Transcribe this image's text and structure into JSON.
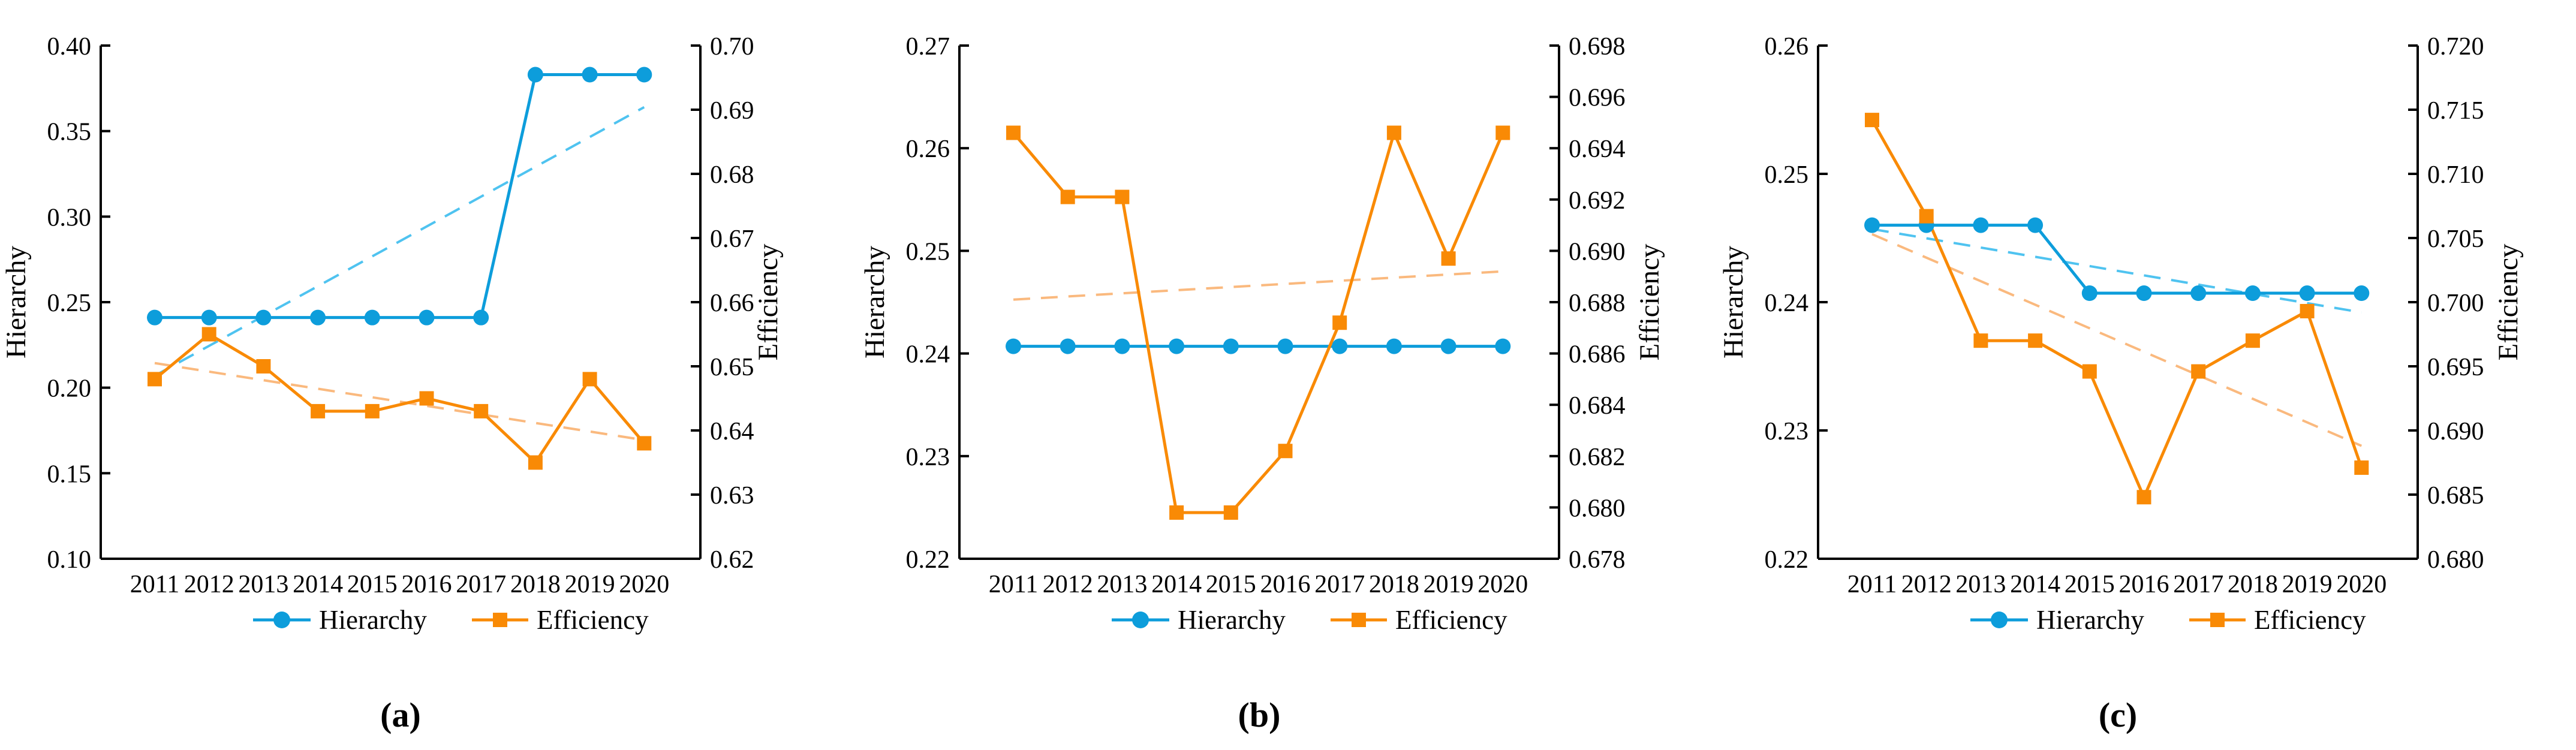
{
  "figure": {
    "background": "#ffffff"
  },
  "colors": {
    "hierarchy": "#0D9DDB",
    "hierarchy_trend": "#4FC3F0",
    "efficiency": "#F98A05",
    "efficiency_trend": "#FAB97E",
    "axis": "#000000"
  },
  "legend": {
    "hierarchy_label": "Hierarchy",
    "efficiency_label": "Efficiency"
  },
  "chart_data": [
    {
      "type": "line",
      "caption": "(a)",
      "x_categories": [
        "2011",
        "2012",
        "2013",
        "2014",
        "2015",
        "2016",
        "2017",
        "2018",
        "2019",
        "2020"
      ],
      "left_axis": {
        "title": "Hierarchy",
        "min": 0.1,
        "max": 0.4,
        "step": 0.05,
        "decimals": 2
      },
      "right_axis": {
        "title": "Efficiency",
        "min": 0.62,
        "max": 0.7,
        "step": 0.01,
        "decimals": 2
      },
      "series": [
        {
          "name": "Hierarchy",
          "axis": "left",
          "marker": "circle",
          "color_key": "hierarchy",
          "values": [
            0.241,
            0.241,
            0.241,
            0.241,
            0.241,
            0.241,
            0.241,
            0.383,
            0.383,
            0.383
          ],
          "trend": {
            "start": 0.207,
            "end": 0.364,
            "color_key": "hierarchy_trend"
          }
        },
        {
          "name": "Efficiency",
          "axis": "right",
          "marker": "square",
          "color_key": "efficiency",
          "values": [
            0.648,
            0.655,
            0.65,
            0.643,
            0.643,
            0.645,
            0.643,
            0.635,
            0.648,
            0.638
          ],
          "trend": {
            "start": 0.6505,
            "end": 0.6385,
            "color_key": "efficiency_trend"
          }
        }
      ]
    },
    {
      "type": "line",
      "caption": "(b)",
      "x_categories": [
        "2011",
        "2012",
        "2013",
        "2014",
        "2015",
        "2016",
        "2017",
        "2018",
        "2019",
        "2020"
      ],
      "left_axis": {
        "title": "Hierarchy",
        "min": 0.22,
        "max": 0.27,
        "step": 0.01,
        "decimals": 2
      },
      "right_axis": {
        "title": "Efficiency",
        "min": 0.678,
        "max": 0.698,
        "step": 0.002,
        "decimals": 3
      },
      "series": [
        {
          "name": "Hierarchy",
          "axis": "left",
          "marker": "circle",
          "color_key": "hierarchy",
          "values": [
            0.2407,
            0.2407,
            0.2407,
            0.2407,
            0.2407,
            0.2407,
            0.2407,
            0.2407,
            0.2407,
            0.2407
          ],
          "trend": null
        },
        {
          "name": "Efficiency",
          "axis": "right",
          "marker": "square",
          "color_key": "efficiency",
          "values": [
            0.6946,
            0.6921,
            0.6921,
            0.6798,
            0.6798,
            0.6822,
            0.6872,
            0.6946,
            0.6897,
            0.6946
          ],
          "trend": {
            "start": 0.6881,
            "end": 0.6892,
            "color_key": "efficiency_trend"
          }
        }
      ]
    },
    {
      "type": "line",
      "caption": "(c)",
      "x_categories": [
        "2011",
        "2012",
        "2013",
        "2014",
        "2015",
        "2016",
        "2017",
        "2018",
        "2019",
        "2020"
      ],
      "left_axis": {
        "title": "Hierarchy",
        "min": 0.22,
        "max": 0.26,
        "step": 0.01,
        "decimals": 2
      },
      "right_axis": {
        "title": "Efficiency",
        "min": 0.68,
        "max": 0.72,
        "step": 0.005,
        "decimals": 3
      },
      "series": [
        {
          "name": "Hierarchy",
          "axis": "left",
          "marker": "circle",
          "color_key": "hierarchy",
          "values": [
            0.246,
            0.246,
            0.246,
            0.246,
            0.2407,
            0.2407,
            0.2407,
            0.2407,
            0.2407,
            0.2407
          ],
          "trend": {
            "start": 0.2457,
            "end": 0.2392,
            "color_key": "hierarchy_trend"
          }
        },
        {
          "name": "Efficiency",
          "axis": "right",
          "marker": "square",
          "color_key": "efficiency",
          "values": [
            0.7142,
            0.7067,
            0.697,
            0.697,
            0.6946,
            0.6848,
            0.6946,
            0.697,
            0.6993,
            0.6871
          ],
          "trend": {
            "start": 0.7053,
            "end": 0.6888,
            "color_key": "efficiency_trend"
          }
        }
      ]
    }
  ]
}
